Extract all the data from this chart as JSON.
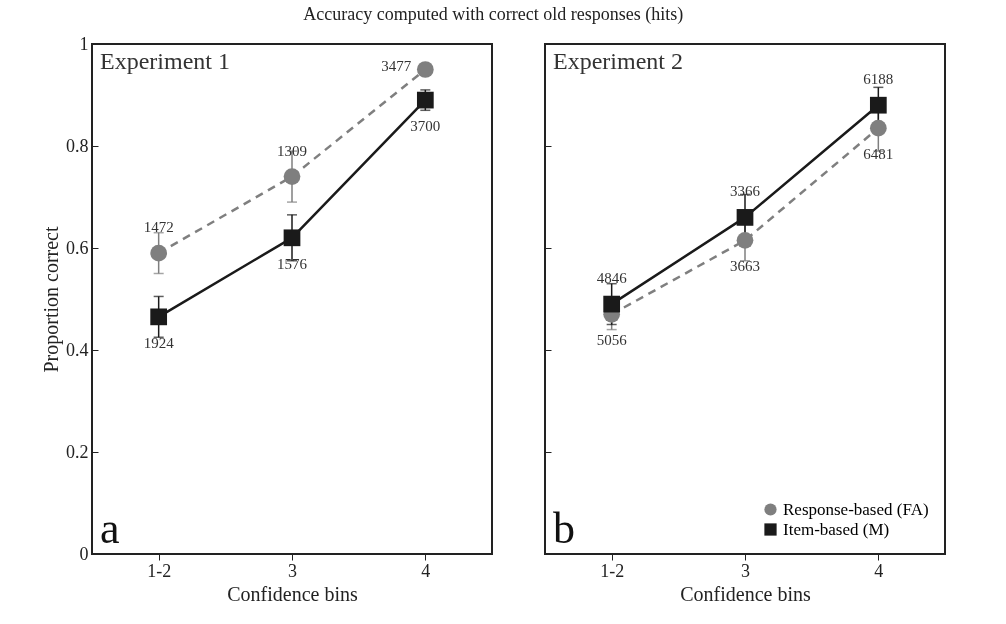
{
  "chart_data": [
    {
      "type": "line",
      "title": "Accuracy computed with correct old responses (hits)",
      "xlabel": "Confidence bins",
      "ylabel": "Proportion correct",
      "categories": [
        "1-2",
        "3",
        "4"
      ],
      "ylim": [
        0,
        1
      ],
      "yticks": [
        0,
        0.2,
        0.4,
        0.6,
        0.8,
        1
      ],
      "grid": false,
      "legend": false,
      "series": [
        {
          "color": "#7f7f7f",
          "marker": "circle",
          "line_style": "dashed",
          "values": [
            0.59,
            0.74,
            0.95
          ],
          "errors": [
            0.04,
            0.05,
            0.01
          ]
        },
        {
          "color": "#1a1a1a",
          "marker": "square",
          "line_style": "solid",
          "values": [
            0.465,
            0.62,
            0.89
          ],
          "errors": [
            0.04,
            0.045,
            0.02
          ]
        }
      ],
      "annotations": [
        "Experiment 1",
        "a",
        {
          "text": "1472",
          "x": "1-2",
          "y": 0.59
        },
        {
          "text": "1309",
          "x": "3",
          "y": 0.74
        },
        {
          "text": "3477",
          "x": "4",
          "y": 0.95
        },
        {
          "text": "1924",
          "x": "1-2",
          "y": 0.465
        },
        {
          "text": "1576",
          "x": "3",
          "y": 0.62
        },
        {
          "text": "3700",
          "x": "4",
          "y": 0.89
        }
      ]
    },
    {
      "type": "line",
      "xlabel": "Confidence bins",
      "categories": [
        "1-2",
        "3",
        "4"
      ],
      "ylim": [
        0,
        1
      ],
      "yticks": [
        0,
        0.2,
        0.4,
        0.6,
        0.8,
        1
      ],
      "grid": false,
      "legend": "bottom right",
      "tick_labels": "x",
      "series": [
        {
          "name": "Response-based (FA)",
          "color": "#7f7f7f",
          "marker": "circle",
          "line_style": "dashed",
          "values": [
            0.47,
            0.615,
            0.835
          ],
          "errors": [
            0.03,
            0.04,
            0.045
          ]
        },
        {
          "name": "Item-based (M)",
          "color": "#1a1a1a",
          "marker": "square",
          "line_style": "solid",
          "values": [
            0.49,
            0.66,
            0.88
          ],
          "errors": [
            0.04,
            0.045,
            0.035
          ]
        }
      ],
      "annotations": [
        "Experiment 2",
        "b",
        {
          "text": "5056",
          "x": "1-2",
          "y": 0.47
        },
        {
          "text": "3663",
          "x": "3",
          "y": 0.615
        },
        {
          "text": "6481",
          "x": "4",
          "y": 0.835
        },
        {
          "text": "4846",
          "x": "1-2",
          "y": 0.49
        },
        {
          "text": "3366",
          "x": "3",
          "y": 0.66
        },
        {
          "text": "6188",
          "x": "4",
          "y": 0.88
        }
      ]
    }
  ]
}
